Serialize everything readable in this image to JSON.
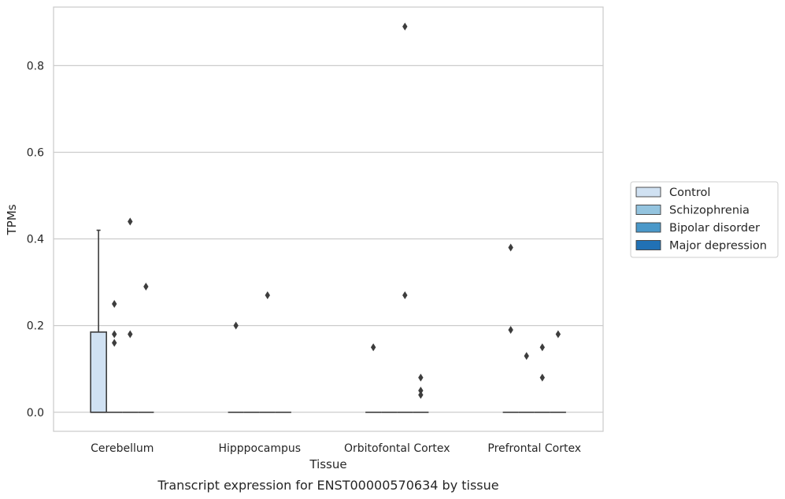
{
  "chart_data": {
    "type": "box",
    "xlabel": "Tissue",
    "ylabel": "TPMs",
    "caption": "Transcript expression for ENST00000570634 by tissue",
    "categories": [
      "Cerebellum",
      "Hipppocampus",
      "Orbitofontal Cortex",
      "Prefrontal Cortex"
    ],
    "ylim": [
      -0.044,
      0.935
    ],
    "yticks": [
      0.0,
      0.2,
      0.4,
      0.6,
      0.8
    ],
    "ytick_labels": [
      "0.0",
      "0.2",
      "0.4",
      "0.6",
      "0.8"
    ],
    "grid": "horizontal",
    "legend_placement": "center-right, outside",
    "series": [
      {
        "name": "Control",
        "color": "#d0e1f2",
        "boxes": [
          {
            "category": "Cerebellum",
            "q1": 0.0,
            "median": 0.0,
            "q3": 0.185,
            "whisker_low": 0.0,
            "whisker_high": 0.42,
            "outliers": []
          },
          {
            "category": "Hipppocampus",
            "q1": 0.0,
            "median": 0.0,
            "q3": 0.0,
            "whisker_low": 0.0,
            "whisker_high": 0.0,
            "outliers": [
              0.2
            ]
          },
          {
            "category": "Orbitofontal Cortex",
            "q1": 0.0,
            "median": 0.0,
            "q3": 0.0,
            "whisker_low": 0.0,
            "whisker_high": 0.0,
            "outliers": [
              0.15
            ]
          },
          {
            "category": "Prefrontal Cortex",
            "q1": 0.0,
            "median": 0.0,
            "q3": 0.0,
            "whisker_low": 0.0,
            "whisker_high": 0.0,
            "outliers": [
              0.38,
              0.19
            ]
          }
        ]
      },
      {
        "name": "Schizophrenia",
        "color": "#94c4df",
        "boxes": [
          {
            "category": "Cerebellum",
            "q1": 0.0,
            "median": 0.0,
            "q3": 0.0,
            "whisker_low": 0.0,
            "whisker_high": 0.0,
            "outliers": [
              0.25,
              0.18,
              0.16
            ]
          },
          {
            "category": "Hipppocampus",
            "q1": 0.0,
            "median": 0.0,
            "q3": 0.0,
            "whisker_low": 0.0,
            "whisker_high": 0.0,
            "outliers": []
          },
          {
            "category": "Orbitofontal Cortex",
            "q1": 0.0,
            "median": 0.0,
            "q3": 0.0,
            "whisker_low": 0.0,
            "whisker_high": 0.0,
            "outliers": []
          },
          {
            "category": "Prefrontal Cortex",
            "q1": 0.0,
            "median": 0.0,
            "q3": 0.0,
            "whisker_low": 0.0,
            "whisker_high": 0.0,
            "outliers": [
              0.13
            ]
          }
        ]
      },
      {
        "name": "Bipolar disorder",
        "color": "#4a98c9",
        "boxes": [
          {
            "category": "Cerebellum",
            "q1": 0.0,
            "median": 0.0,
            "q3": 0.0,
            "whisker_low": 0.0,
            "whisker_high": 0.0,
            "outliers": [
              0.44,
              0.18
            ]
          },
          {
            "category": "Hipppocampus",
            "q1": 0.0,
            "median": 0.0,
            "q3": 0.0,
            "whisker_low": 0.0,
            "whisker_high": 0.0,
            "outliers": [
              0.27
            ]
          },
          {
            "category": "Orbitofontal Cortex",
            "q1": 0.0,
            "median": 0.0,
            "q3": 0.0,
            "whisker_low": 0.0,
            "whisker_high": 0.0,
            "outliers": [
              0.89,
              0.27
            ]
          },
          {
            "category": "Prefrontal Cortex",
            "q1": 0.0,
            "median": 0.0,
            "q3": 0.0,
            "whisker_low": 0.0,
            "whisker_high": 0.0,
            "outliers": [
              0.15,
              0.08
            ]
          }
        ]
      },
      {
        "name": "Major depression",
        "color": "#2171b5",
        "boxes": [
          {
            "category": "Cerebellum",
            "q1": 0.0,
            "median": 0.0,
            "q3": 0.0,
            "whisker_low": 0.0,
            "whisker_high": 0.0,
            "outliers": [
              0.29
            ]
          },
          {
            "category": "Hipppocampus",
            "q1": 0.0,
            "median": 0.0,
            "q3": 0.0,
            "whisker_low": 0.0,
            "whisker_high": 0.0,
            "outliers": []
          },
          {
            "category": "Orbitofontal Cortex",
            "q1": 0.0,
            "median": 0.0,
            "q3": 0.0,
            "whisker_low": 0.0,
            "whisker_high": 0.0,
            "outliers": [
              0.08,
              0.05,
              0.04
            ]
          },
          {
            "category": "Prefrontal Cortex",
            "q1": 0.0,
            "median": 0.0,
            "q3": 0.0,
            "whisker_low": 0.0,
            "whisker_high": 0.0,
            "outliers": [
              0.18
            ]
          }
        ]
      }
    ]
  },
  "colors": {
    "grid": "#cccccc",
    "frame": "#cccccc",
    "box_edge": "#3d3d3d",
    "text": "#262626"
  }
}
